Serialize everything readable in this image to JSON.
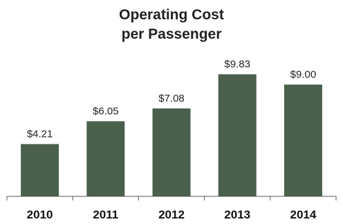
{
  "chart_data": {
    "type": "bar",
    "title_lines": [
      "Operating Cost",
      "per Passenger"
    ],
    "categories": [
      "2010",
      "2011",
      "2012",
      "2013",
      "2014"
    ],
    "values": [
      4.21,
      6.05,
      7.08,
      9.83,
      9.0
    ],
    "value_labels": [
      "$4.21",
      "$6.05",
      "$7.08",
      "$9.83",
      "$9.00"
    ],
    "xlabel": "",
    "ylabel": "",
    "ylim": [
      0,
      10.8
    ],
    "grid": false,
    "legend": "none",
    "bar_color": "#4b604c",
    "axis_color": "#555555"
  }
}
